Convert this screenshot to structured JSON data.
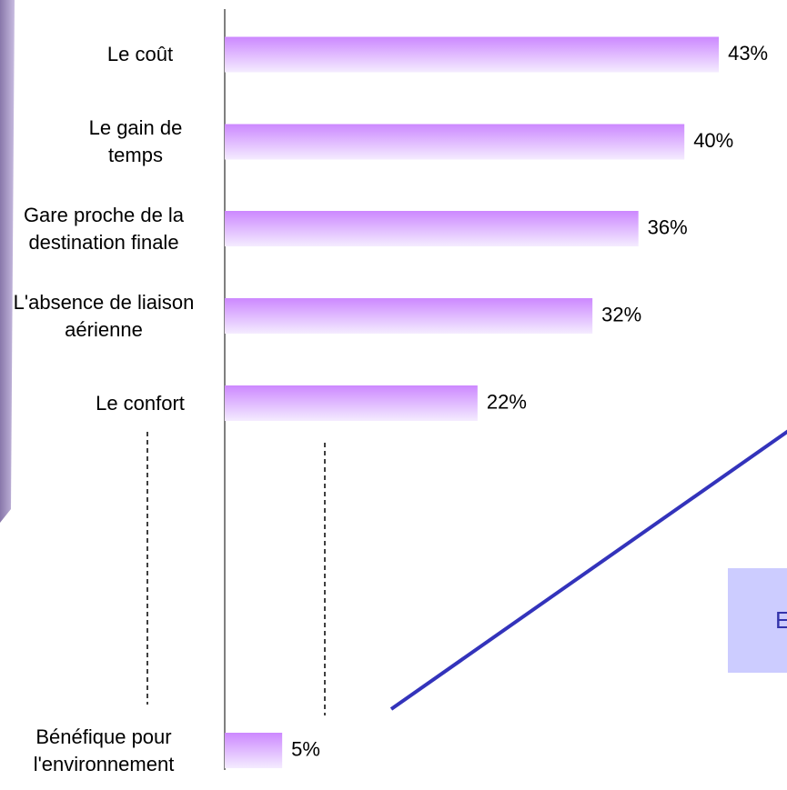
{
  "chart_data": {
    "type": "bar",
    "orientation": "horizontal",
    "categories": [
      "Le coût",
      "Le gain de temps",
      "Gare proche de la destination finale",
      "L'absence de liaison aérienne",
      "Le confort",
      "Bénéfique pour l'environnement"
    ],
    "values": [
      43,
      40,
      36,
      32,
      22,
      5
    ],
    "value_labels": [
      "43%",
      "40%",
      "36%",
      "32%",
      "22%",
      "5%"
    ],
    "color": "#cc88ff",
    "callout": "E"
  }
}
